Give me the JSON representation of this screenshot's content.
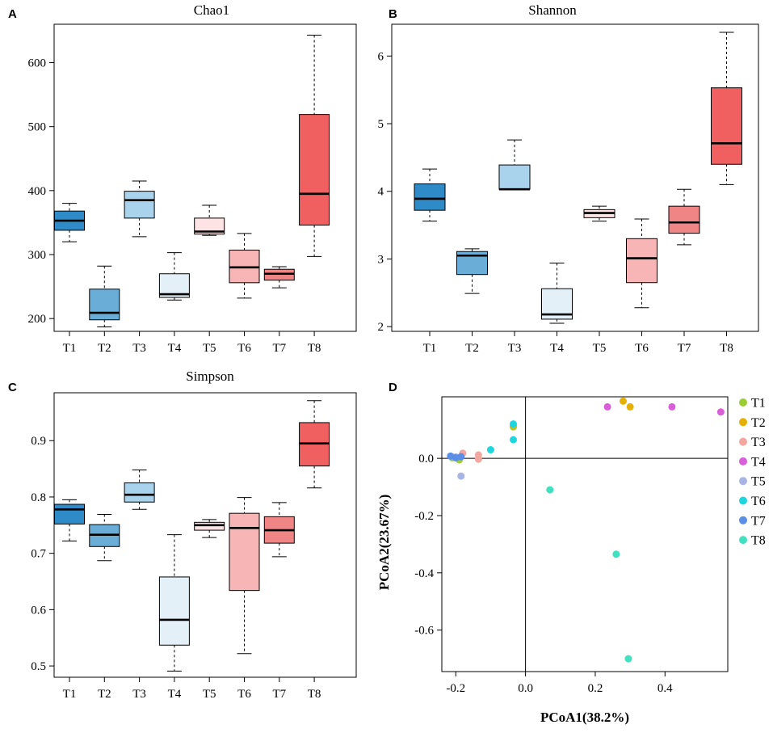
{
  "chart_data": [
    {
      "panel": "A",
      "type": "boxplot",
      "title": "Chao1",
      "categories": [
        "T1",
        "T2",
        "T3",
        "T4",
        "T5",
        "T6",
        "T7",
        "T8"
      ],
      "yticks": [
        200,
        300,
        400,
        500,
        600
      ],
      "ylim": [
        180,
        660
      ],
      "boxes": [
        {
          "min": 320,
          "q1": 338,
          "median": 353,
          "q3": 368,
          "max": 380,
          "color": "#2E8BC8"
        },
        {
          "min": 187,
          "q1": 198,
          "median": 209,
          "q3": 246,
          "max": 282,
          "color": "#6AAED8"
        },
        {
          "min": 328,
          "q1": 357,
          "median": 385,
          "q3": 399,
          "max": 415,
          "color": "#A9D2EC"
        },
        {
          "min": 229,
          "q1": 233,
          "median": 238,
          "q3": 270,
          "max": 303,
          "color": "#E3F0F8"
        },
        {
          "min": 330,
          "q1": 332,
          "median": 336,
          "q3": 357,
          "max": 377,
          "color": "#FDE3E3"
        },
        {
          "min": 232,
          "q1": 256,
          "median": 280,
          "q3": 307,
          "max": 333,
          "color": "#F7B5B5"
        },
        {
          "min": 248,
          "q1": 260,
          "median": 270,
          "q3": 277,
          "max": 281,
          "color": "#F08585"
        },
        {
          "min": 297,
          "q1": 346,
          "median": 395,
          "q3": 519,
          "max": 643,
          "color": "#F06060"
        }
      ]
    },
    {
      "panel": "B",
      "type": "boxplot",
      "title": "Shannon",
      "categories": [
        "T1",
        "T2",
        "T3",
        "T4",
        "T5",
        "T6",
        "T7",
        "T8"
      ],
      "yticks": [
        2,
        3,
        4,
        5,
        6
      ],
      "ylim": [
        1.93,
        6.47
      ],
      "boxes": [
        {
          "min": 3.56,
          "q1": 3.72,
          "median": 3.89,
          "q3": 4.11,
          "max": 4.33,
          "color": "#2E8BC8"
        },
        {
          "min": 2.49,
          "q1": 2.77,
          "median": 3.05,
          "q3": 3.11,
          "max": 3.15,
          "color": "#6AAED8"
        },
        {
          "min": 4.03,
          "q1": 4.03,
          "median": 4.03,
          "q3": 4.39,
          "max": 4.76,
          "color": "#A9D2EC"
        },
        {
          "min": 2.05,
          "q1": 2.11,
          "median": 2.18,
          "q3": 2.56,
          "max": 2.94,
          "color": "#E3F0F8"
        },
        {
          "min": 3.56,
          "q1": 3.61,
          "median": 3.68,
          "q3": 3.73,
          "max": 3.78,
          "color": "#FDE3E3"
        },
        {
          "min": 2.28,
          "q1": 2.65,
          "median": 3.01,
          "q3": 3.3,
          "max": 3.59,
          "color": "#F7B5B5"
        },
        {
          "min": 3.21,
          "q1": 3.38,
          "median": 3.54,
          "q3": 3.78,
          "max": 4.03,
          "color": "#F08585"
        },
        {
          "min": 4.1,
          "q1": 4.4,
          "median": 4.71,
          "q3": 5.53,
          "max": 6.35,
          "color": "#F06060"
        }
      ]
    },
    {
      "panel": "C",
      "type": "boxplot",
      "title": "Simpson",
      "categories": [
        "T1",
        "T2",
        "T3",
        "T4",
        "T5",
        "T6",
        "T7",
        "T8"
      ],
      "yticks": [
        0.5,
        0.6,
        0.7,
        0.8,
        0.9
      ],
      "ylim": [
        0.48,
        0.985
      ],
      "boxes": [
        {
          "min": 0.722,
          "q1": 0.752,
          "median": 0.778,
          "q3": 0.787,
          "max": 0.795,
          "color": "#2E8BC8"
        },
        {
          "min": 0.687,
          "q1": 0.712,
          "median": 0.733,
          "q3": 0.751,
          "max": 0.769,
          "color": "#6AAED8"
        },
        {
          "min": 0.778,
          "q1": 0.791,
          "median": 0.804,
          "q3": 0.825,
          "max": 0.848,
          "color": "#A9D2EC"
        },
        {
          "min": 0.491,
          "q1": 0.537,
          "median": 0.582,
          "q3": 0.658,
          "max": 0.733,
          "color": "#E3F0F8"
        },
        {
          "min": 0.728,
          "q1": 0.741,
          "median": 0.75,
          "q3": 0.755,
          "max": 0.76,
          "color": "#FDE3E3"
        },
        {
          "min": 0.522,
          "q1": 0.634,
          "median": 0.745,
          "q3": 0.771,
          "max": 0.799,
          "color": "#F7B5B5"
        },
        {
          "min": 0.694,
          "q1": 0.718,
          "median": 0.741,
          "q3": 0.765,
          "max": 0.79,
          "color": "#F08585"
        },
        {
          "min": 0.816,
          "q1": 0.855,
          "median": 0.895,
          "q3": 0.932,
          "max": 0.971,
          "color": "#F06060"
        }
      ]
    },
    {
      "panel": "D",
      "type": "scatter",
      "xlabel": "PCoA1(38.2%)",
      "ylabel": "PCoA2(23.67%)",
      "xticks": [
        -0.2,
        0.0,
        0.2,
        0.4
      ],
      "xtick_labels": [
        "-0.2",
        "0.0",
        "0.2",
        "0.4"
      ],
      "yticks": [
        0.0,
        -0.2,
        -0.4,
        -0.6
      ],
      "ytick_labels": [
        "0.0",
        "-0.2",
        "-0.4",
        "-0.6"
      ],
      "xlim": [
        -0.24,
        0.58
      ],
      "ylim": [
        -0.745,
        0.215
      ],
      "legend_position": "right",
      "series": [
        {
          "name": "T1",
          "color": "#9ACD32",
          "points": [
            [
              -0.19,
              -0.005
            ],
            [
              -0.21,
              0.002
            ],
            [
              -0.035,
              0.11
            ]
          ]
        },
        {
          "name": "T2",
          "color": "#E6B000",
          "points": [
            [
              0.28,
              0.2
            ],
            [
              0.3,
              0.18
            ],
            [
              -0.035,
              0.115
            ]
          ]
        },
        {
          "name": "T3",
          "color": "#F4A6A0",
          "points": [
            [
              -0.18,
              0.018
            ],
            [
              -0.135,
              0.012
            ],
            [
              -0.135,
              -0.003
            ]
          ]
        },
        {
          "name": "T4",
          "color": "#D95FD9",
          "points": [
            [
              0.235,
              0.18
            ],
            [
              0.42,
              0.18
            ],
            [
              0.56,
              0.162
            ]
          ]
        },
        {
          "name": "T5",
          "color": "#A8B4E4",
          "points": [
            [
              -0.2,
              0.005
            ],
            [
              -0.185,
              -0.062
            ],
            [
              -0.205,
              0.003
            ]
          ]
        },
        {
          "name": "T6",
          "color": "#1ED6DE",
          "points": [
            [
              -0.035,
              0.12
            ],
            [
              -0.035,
              0.065
            ],
            [
              -0.1,
              0.03
            ]
          ]
        },
        {
          "name": "T7",
          "color": "#5B8EE6",
          "points": [
            [
              -0.215,
              0.008
            ],
            [
              -0.2,
              0.002
            ],
            [
              -0.185,
              0.006
            ]
          ]
        },
        {
          "name": "T8",
          "color": "#40E0C0",
          "points": [
            [
              0.07,
              -0.11
            ],
            [
              0.26,
              -0.335
            ],
            [
              0.295,
              -0.7
            ]
          ]
        }
      ]
    }
  ]
}
